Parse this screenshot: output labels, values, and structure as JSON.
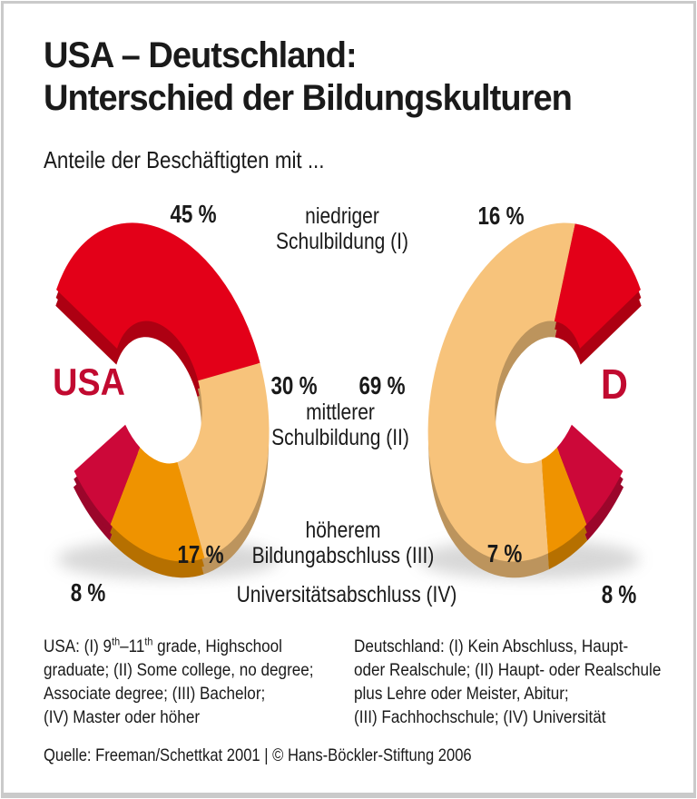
{
  "header": {
    "title_line1": "USA – Deutschland:",
    "title_line2": "Unterschied der Bildungskulturen",
    "subtitle": "Anteile der Beschäftigten mit ..."
  },
  "colors": {
    "country_label": "#c10a30",
    "text": "#1a1a1a",
    "frame": "#cacaca"
  },
  "chart_data": {
    "type": "pie",
    "variant": "paired 3d donut rings (C-shaped, openings facing outward)",
    "title": "USA – Deutschland: Unterschied der Bildungskulturen",
    "subtitle": "Anteile der Beschäftigten mit ...",
    "categories": [
      "niedriger Schulbildung (I)",
      "mittlerer Schulbildung (II)",
      "höherem Bildungabschluss (III)",
      "Universitätsabschluss (IV)"
    ],
    "series": [
      {
        "name": "USA",
        "values": [
          45,
          30,
          17,
          8
        ],
        "value_labels": [
          "45 %",
          "30 %",
          "17 %",
          "8 %"
        ],
        "opening": "west"
      },
      {
        "name": "D",
        "values": [
          16,
          69,
          7,
          8
        ],
        "value_labels": [
          "16 %",
          "69 %",
          "7 %",
          "8 %"
        ],
        "opening": "east"
      }
    ],
    "segment_colors": [
      "#e30018",
      "#f7c37b",
      "#ef9300",
      "#cc0839"
    ],
    "legend_position": "category labels centered between the two rings, value labels beside each ring"
  },
  "footnotes": {
    "usa": {
      "l1a": "USA: (I) 9",
      "l1sup1": "th",
      "l1b": "–11",
      "l1sup2": "th",
      "l1c": " grade, Highschool",
      "line2": "graduate; (II) Some college, no degree;",
      "line3": "Associate degree; (III) Bachelor;",
      "line4": "(IV) Master oder höher"
    },
    "germany": {
      "line1": "Deutschland: (I) Kein Abschluss, Haupt-",
      "line2": "oder Realschule; (II) Haupt- oder Realschule",
      "line3": "plus Lehre oder Meister, Abitur;",
      "line4": "(III) Fachhochschule; (IV) Universität"
    }
  },
  "source": {
    "text": "Quelle: Freeman/Schettkat 2001 | © Hans-Böckler-Stiftung 2006"
  }
}
